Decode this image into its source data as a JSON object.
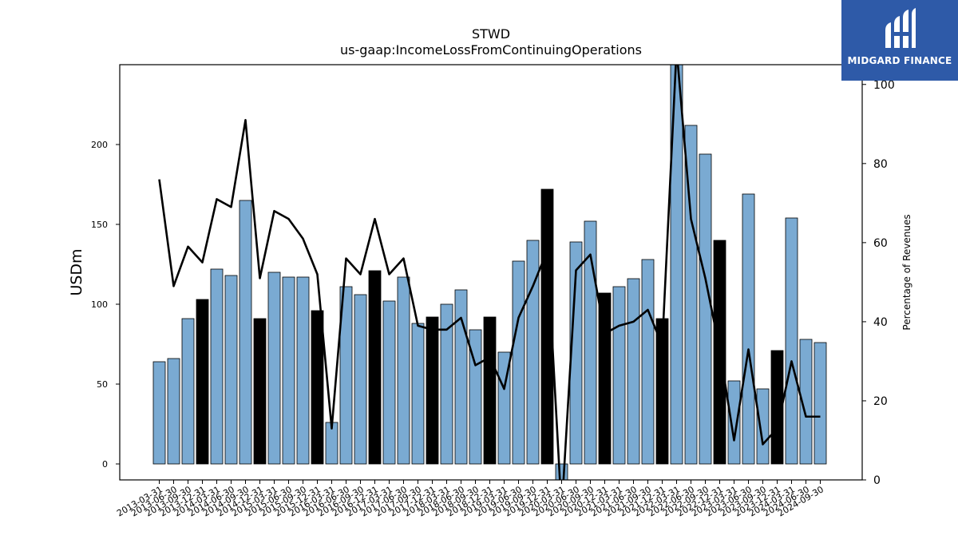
{
  "brand": {
    "name": "MIDGARD FINANCE",
    "background": "#2e5aa8"
  },
  "chart_data": {
    "type": "bar",
    "title": "STWD",
    "subtitle": "us-gaap:IncomeLossFromContinuingOperations",
    "ylabel": "USDm",
    "y2label": "Percentage of Revenues",
    "ylim": [
      -10,
      250
    ],
    "y2lim": [
      0,
      105
    ],
    "yticks": [
      0,
      50,
      100,
      150,
      200
    ],
    "y2ticks": [
      0,
      20,
      40,
      60,
      80,
      100
    ],
    "grid": false,
    "colors": {
      "bar": "#7aaad2",
      "bar_q4": "#000000",
      "line": "#000000"
    },
    "categories": [
      "2013-03-31",
      "2013-06-30",
      "2013-09-30",
      "2013-12-31",
      "2014-03-31",
      "2014-06-30",
      "2014-09-30",
      "2014-12-31",
      "2015-03-31",
      "2015-06-30",
      "2015-09-30",
      "2015-12-31",
      "2016-03-31",
      "2016-06-30",
      "2016-09-30",
      "2016-12-31",
      "2017-03-31",
      "2017-06-30",
      "2017-09-30",
      "2017-12-31",
      "2018-03-31",
      "2018-06-30",
      "2018-09-30",
      "2018-12-31",
      "2019-03-31",
      "2019-06-30",
      "2019-09-30",
      "2019-12-31",
      "2020-03-31",
      "2020-06-30",
      "2020-09-30",
      "2020-12-31",
      "2021-03-31",
      "2021-06-30",
      "2021-09-30",
      "2021-12-31",
      "2022-03-31",
      "2022-06-30",
      "2022-09-30",
      "2022-12-31",
      "2023-03-31",
      "2023-06-30",
      "2023-09-30",
      "2023-12-31",
      "2024-03-31",
      "2024-06-30",
      "2024-09-30"
    ],
    "series": [
      {
        "kind": "bar",
        "axis": "left",
        "values": [
          64,
          66,
          91,
          103,
          122,
          118,
          165,
          91,
          120,
          117,
          117,
          96,
          26,
          111,
          106,
          121,
          102,
          117,
          88,
          92,
          100,
          109,
          84,
          92,
          70,
          127,
          140,
          172,
          -12,
          139,
          152,
          107,
          111,
          116,
          128,
          91,
          257,
          212,
          194,
          140,
          52,
          169,
          47,
          71,
          154,
          78,
          76
        ]
      },
      {
        "kind": "line",
        "axis": "right",
        "values": [
          76,
          49,
          59,
          55,
          71,
          69,
          91,
          51,
          68,
          66,
          61,
          52,
          13,
          56,
          52,
          66,
          52,
          56,
          39,
          38,
          38,
          41,
          29,
          31,
          23,
          41,
          49,
          58,
          -8,
          53,
          57,
          37,
          39,
          40,
          43,
          34,
          109,
          66,
          51,
          33,
          10,
          33,
          9,
          13,
          30,
          16,
          16
        ]
      }
    ]
  }
}
